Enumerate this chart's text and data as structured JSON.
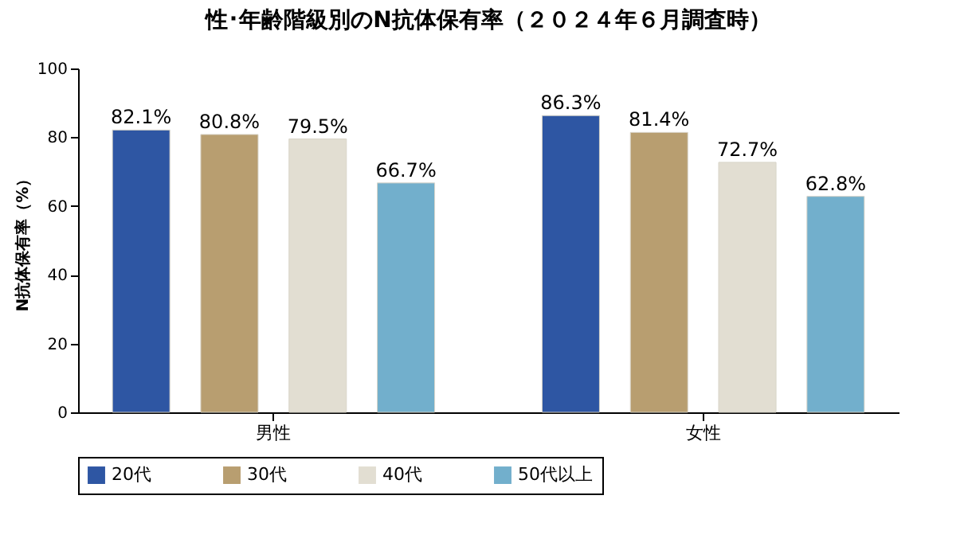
{
  "chart_data": {
    "type": "bar",
    "title": "性･年齢階級別のN抗体保有率（２０２４年６月調査時）",
    "ylabel": "N抗体保有率（%）",
    "categories": [
      "男性",
      "女性"
    ],
    "series": [
      {
        "name": "20代",
        "color": "#2e56a3",
        "values": [
          82.1,
          86.3
        ],
        "value_labels": [
          "82.1%",
          "86.3%"
        ]
      },
      {
        "name": "30代",
        "color": "#b89e70",
        "values": [
          80.8,
          81.4
        ],
        "value_labels": [
          "80.8%",
          "81.4%"
        ]
      },
      {
        "name": "40代",
        "color": "#e2ded2",
        "values": [
          79.5,
          72.7
        ],
        "value_labels": [
          "79.5%",
          "72.7%"
        ]
      },
      {
        "name": "50代以上",
        "color": "#72afcc",
        "values": [
          66.7,
          62.8
        ],
        "value_labels": [
          "66.7%",
          "62.8%"
        ]
      }
    ],
    "ylim": [
      0,
      100
    ],
    "yticks": [
      0,
      20,
      40,
      60,
      80,
      100
    ],
    "grid": false,
    "legend": "bottom"
  }
}
